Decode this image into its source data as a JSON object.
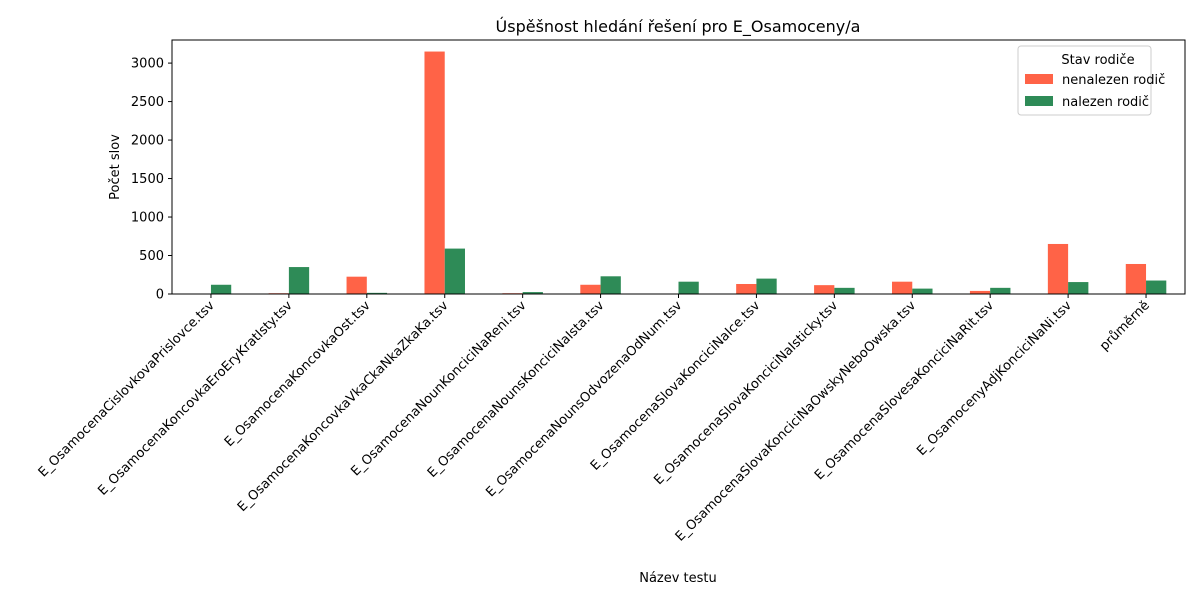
{
  "chart_data": {
    "type": "bar",
    "title": "Úspěšnost hledání řešení pro E_Osamoceny/a",
    "xlabel": "Název testu",
    "ylabel": "Počet slov",
    "ylim": [
      0,
      3300
    ],
    "yticks": [
      0,
      500,
      1000,
      1500,
      2000,
      2500,
      3000
    ],
    "grid": false,
    "legend": {
      "title": "Stav rodiče",
      "placement": "top-right"
    },
    "categories": [
      "E_OsamocenaCislovkovaPrislovce.tsv",
      "E_OsamocenaKoncovkaEroEryKratIsty.tsv",
      "E_OsamocenaKoncovkaOst.tsv",
      "E_OsamocenaKoncovkaVkaCkaNkaZkaKa.tsv",
      "E_OsamocenaNounKonciciNaReni.tsv",
      "E_OsamocenaNounsKonciciNaIsta.tsv",
      "E_OsamocenaNounsOdvozenaOdNum.tsv",
      "E_OsamocenaSlovaKonciciNaIce.tsv",
      "E_OsamocenaSlovaKonciciNaIsticky.tsv",
      "E_OsamocenaSlovaKonciciNaOwskyNeboOwska.tsv",
      "E_OsamocenaSlovesaKonciciNaRit.tsv",
      "E_OsamocenyAdjKonciciNaNi.tsv",
      "průměrně"
    ],
    "series": [
      {
        "name": "nenalezen rodič",
        "color": "#ff6347",
        "values": [
          0,
          10,
          225,
          3150,
          10,
          120,
          0,
          130,
          115,
          160,
          40,
          650,
          390
        ]
      },
      {
        "name": "nalezen rodič",
        "color": "#2e8b57",
        "values": [
          120,
          350,
          15,
          590,
          25,
          230,
          160,
          200,
          80,
          70,
          80,
          155,
          175
        ]
      }
    ]
  }
}
